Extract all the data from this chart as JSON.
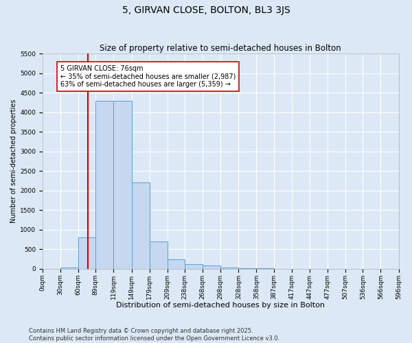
{
  "title": "5, GIRVAN CLOSE, BOLTON, BL3 3JS",
  "subtitle": "Size of property relative to semi-detached houses in Bolton",
  "xlabel": "Distribution of semi-detached houses by size in Bolton",
  "ylabel": "Number of semi-detached properties",
  "bin_edges": [
    0,
    30,
    60,
    89,
    119,
    149,
    179,
    209,
    238,
    268,
    298,
    328,
    358,
    387,
    417,
    447,
    477,
    507,
    536,
    566,
    596
  ],
  "bin_labels": [
    "0sqm",
    "30sqm",
    "60sqm",
    "89sqm",
    "119sqm",
    "149sqm",
    "179sqm",
    "209sqm",
    "238sqm",
    "268sqm",
    "298sqm",
    "328sqm",
    "358sqm",
    "387sqm",
    "417sqm",
    "447sqm",
    "477sqm",
    "507sqm",
    "536sqm",
    "566sqm",
    "596sqm"
  ],
  "counts": [
    5,
    30,
    800,
    4300,
    4300,
    2200,
    700,
    250,
    120,
    80,
    30,
    15,
    10,
    5,
    5,
    5,
    2,
    2,
    1,
    1
  ],
  "bar_color": "#c5d8f0",
  "bar_edge_color": "#5a9fd4",
  "red_line_x": 76,
  "red_line_color": "#cc0000",
  "annotation_text": "5 GIRVAN CLOSE: 76sqm\n← 35% of semi-detached houses are smaller (2,987)\n63% of semi-detached houses are larger (5,359) →",
  "annotation_box_color": "#ffffff",
  "annotation_box_edge": "#cc0000",
  "ylim": [
    0,
    5500
  ],
  "yticks": [
    0,
    500,
    1000,
    1500,
    2000,
    2500,
    3000,
    3500,
    4000,
    4500,
    5000,
    5500
  ],
  "background_color": "#dce8f5",
  "grid_color": "#ffffff",
  "footer": "Contains HM Land Registry data © Crown copyright and database right 2025.\nContains public sector information licensed under the Open Government Licence v3.0.",
  "title_fontsize": 10,
  "subtitle_fontsize": 8.5,
  "xlabel_fontsize": 8,
  "ylabel_fontsize": 7,
  "tick_fontsize": 6.5,
  "annotation_fontsize": 7,
  "footer_fontsize": 6
}
